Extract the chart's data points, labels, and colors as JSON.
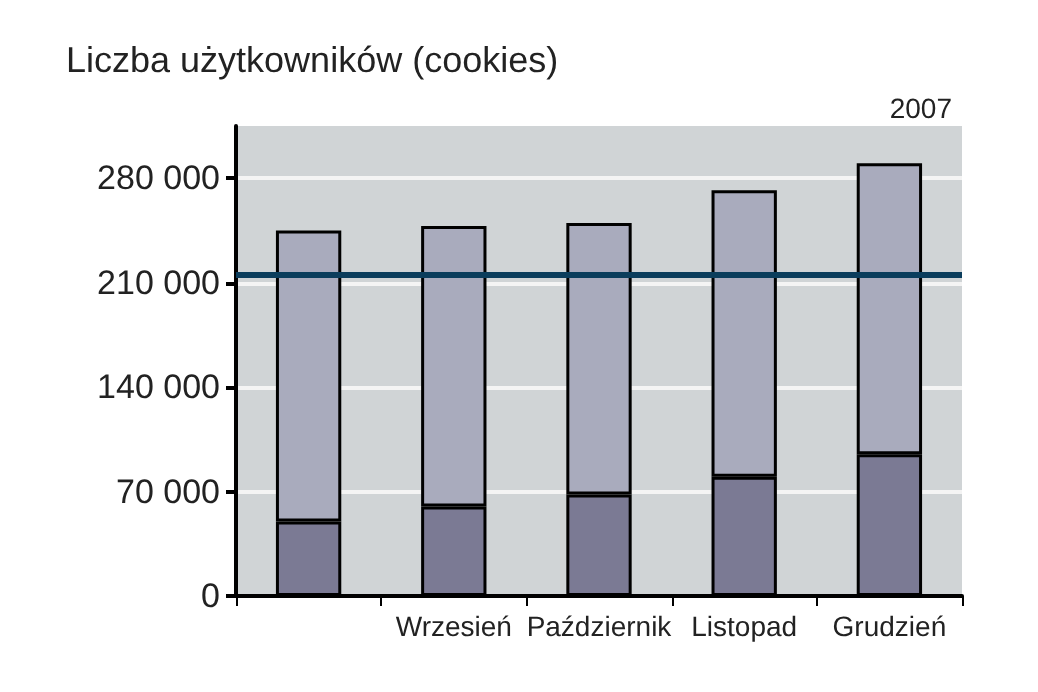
{
  "chart_data": {
    "type": "bar",
    "title": "Liczba użytkowników (cookies)",
    "subtitle": "2007",
    "categories": [
      null,
      "Wrzesień",
      "Październik",
      "Listopad",
      "Grudzień"
    ],
    "stacked": true,
    "series": [
      {
        "color": "#7b7a94",
        "values": [
          50000,
          60000,
          68000,
          80000,
          95000
        ]
      },
      {
        "color": "#a9abbd",
        "values": [
          195000,
          188000,
          182000,
          192000,
          195000
        ]
      }
    ],
    "ylim": [
      0,
      315000
    ],
    "yticks": [
      0,
      70000,
      140000,
      210000,
      280000
    ],
    "grid": "y",
    "ref_lines": [
      {
        "axis": "y",
        "value": 215000,
        "color": "#0b3d5c"
      }
    ]
  }
}
